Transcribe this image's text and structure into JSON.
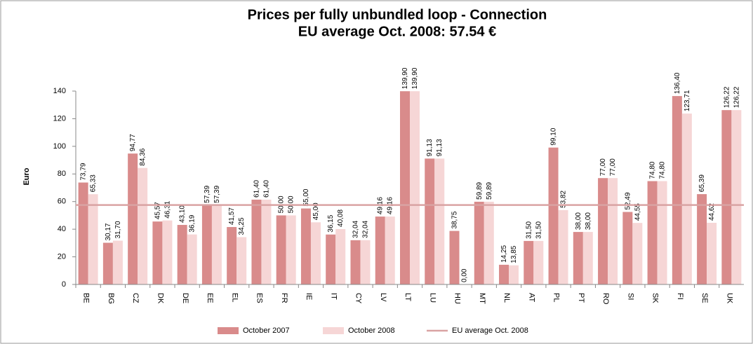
{
  "chart_data": {
    "type": "bar",
    "title": "Prices per fully unbundled loop - Connection",
    "subtitle": "EU average Oct.  2008:  57.54 €",
    "ylabel": "Euro",
    "categories": [
      "BE",
      "BG",
      "CZ",
      "DK",
      "DE",
      "EE",
      "EL",
      "ES",
      "FR",
      "IE",
      "IT",
      "CY",
      "LV",
      "LT",
      "LU",
      "HU",
      "MT",
      "NL",
      "AT",
      "PL",
      "PT",
      "RO",
      "SI",
      "SK",
      "FI",
      "SE",
      "UK"
    ],
    "series": [
      {
        "name": "October 2007",
        "color": "#d98b8b",
        "values": [
          73.79,
          30.17,
          94.77,
          45.57,
          43.1,
          57.39,
          41.57,
          61.4,
          50.0,
          55.0,
          36.15,
          32.04,
          49.16,
          139.9,
          91.13,
          38.75,
          59.89,
          14.25,
          31.5,
          99.1,
          38.0,
          77.0,
          52.49,
          74.8,
          136.4,
          65.39,
          126.22
        ],
        "value_labels": [
          "73,79",
          "30,17",
          "94,77",
          "45,57",
          "43,10",
          "57,39",
          "41,57",
          "61,40",
          "50,00",
          "55,00",
          "36,15",
          "32,04",
          "49,16",
          "139,90",
          "91,13",
          "38,75",
          "59,89",
          "14,25",
          "31,50",
          "99,10",
          "38,00",
          "77,00",
          "52,49",
          "74,80",
          "136,40",
          "65,39",
          "126,22"
        ]
      },
      {
        "name": "October 2008",
        "color": "#f6d6d6",
        "values": [
          65.33,
          31.7,
          84.36,
          46.31,
          36.19,
          57.39,
          34.25,
          61.4,
          50.0,
          45.0,
          40.08,
          32.04,
          49.16,
          139.9,
          91.13,
          0.0,
          59.89,
          13.85,
          31.5,
          53.82,
          38.0,
          77.0,
          44.55,
          74.8,
          123.71,
          44.62,
          126.22
        ],
        "value_labels": [
          "65,33",
          "31,70",
          "84,36",
          "46,31",
          "36,19",
          "57,39",
          "34,25",
          "61,40",
          "50,00",
          "45,00",
          "40,08",
          "32,04",
          "49,16",
          "139,90",
          "91,13",
          "0,00",
          "59,89",
          "13,85",
          "31,50",
          "53,82",
          "38,00",
          "77,00",
          "44,55",
          "74,80",
          "123,71",
          "44,62",
          "126,22"
        ]
      }
    ],
    "average": {
      "name": "EU average Oct. 2008",
      "value": 57.54,
      "color": "#d9a3a3"
    },
    "ylim": [
      0,
      140
    ],
    "yticks": [
      0,
      20,
      40,
      60,
      80,
      100,
      120,
      140
    ]
  }
}
